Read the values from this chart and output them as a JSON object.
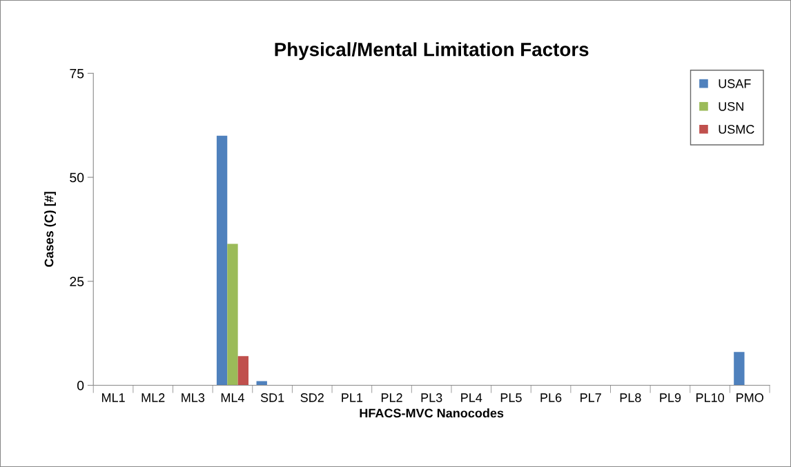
{
  "chart_data": {
    "type": "bar",
    "title": "Physical/Mental Limitation Factors",
    "xlabel": "HFACS-MVC Nanocodes",
    "ylabel": "Cases (C) [#]",
    "categories": [
      "ML1",
      "ML2",
      "ML3",
      "ML4",
      "SD1",
      "SD2",
      "PL1",
      "PL2",
      "PL3",
      "PL4",
      "PL5",
      "PL6",
      "PL7",
      "PL8",
      "PL9",
      "PL10",
      "PMO"
    ],
    "series": [
      {
        "name": "USAF",
        "color": "#4f81bd",
        "values": [
          0,
          0,
          0,
          60,
          1,
          0,
          0,
          0,
          0,
          0,
          0,
          0,
          0,
          0,
          0,
          0,
          8
        ]
      },
      {
        "name": "USN",
        "color": "#9bbb59",
        "values": [
          0,
          0,
          0,
          34,
          0,
          0,
          0,
          0,
          0,
          0,
          0,
          0,
          0,
          0,
          0,
          0,
          0
        ]
      },
      {
        "name": "USMC",
        "color": "#c0504d",
        "values": [
          0,
          0,
          0,
          7,
          0,
          0,
          0,
          0,
          0,
          0,
          0,
          0,
          0,
          0,
          0,
          0,
          0
        ]
      }
    ],
    "ylim": [
      0,
      75
    ],
    "yticks": [
      0,
      25,
      50,
      75
    ],
    "grid": false,
    "legend": "top right"
  }
}
